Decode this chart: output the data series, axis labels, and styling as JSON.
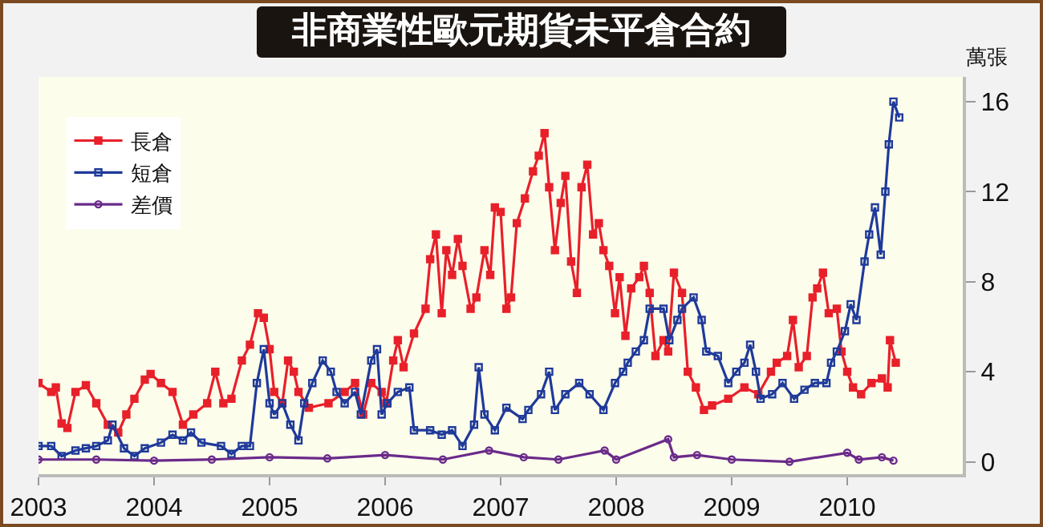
{
  "chart_data": {
    "type": "line",
    "title": "非商業性歐元期貨未平倉合約",
    "ylabel": "萬張",
    "xlim": [
      2003,
      2011
    ],
    "xticks": [
      2003,
      2004,
      2005,
      2006,
      2007,
      2008,
      2009,
      2010
    ],
    "ylim": [
      -0.55,
      17.1
    ],
    "yticks": [
      0,
      4,
      8,
      12,
      16
    ],
    "grid": false,
    "legend": "top left",
    "line_style": "solid",
    "series": [
      {
        "name": "長倉",
        "color": "#e8202a",
        "marker": "square",
        "x": [
          2003.0,
          2003.11,
          2003.15,
          2003.2,
          2003.25,
          2003.32,
          2003.41,
          2003.5,
          2003.6,
          2003.69,
          2003.76,
          2003.83,
          2003.92,
          2003.97,
          2004.06,
          2004.16,
          2004.25,
          2004.34,
          2004.46,
          2004.53,
          2004.6,
          2004.67,
          2004.76,
          2004.83,
          2004.9,
          2004.95,
          2005.0,
          2005.04,
          2005.11,
          2005.16,
          2005.21,
          2005.25,
          2005.34,
          2005.51,
          2005.65,
          2005.74,
          2005.81,
          2005.88,
          2005.97,
          2006.01,
          2006.07,
          2006.11,
          2006.16,
          2006.25,
          2006.35,
          2006.39,
          2006.44,
          2006.49,
          2006.53,
          2006.58,
          2006.63,
          2006.67,
          2006.74,
          2006.79,
          2006.86,
          2006.91,
          2006.95,
          2007.0,
          2007.05,
          2007.09,
          2007.14,
          2007.21,
          2007.28,
          2007.33,
          2007.38,
          2007.42,
          2007.47,
          2007.52,
          2007.56,
          2007.61,
          2007.66,
          2007.7,
          2007.75,
          2007.8,
          2007.85,
          2007.89,
          2007.94,
          2007.99,
          2008.03,
          2008.08,
          2008.13,
          2008.2,
          2008.24,
          2008.29,
          2008.34,
          2008.41,
          2008.45,
          2008.5,
          2008.57,
          2008.62,
          2008.69,
          2008.76,
          2008.83,
          2008.97,
          2009.11,
          2009.23,
          2009.34,
          2009.39,
          2009.48,
          2009.53,
          2009.58,
          2009.65,
          2009.7,
          2009.74,
          2009.79,
          2009.84,
          2009.91,
          2009.95,
          2010.0,
          2010.05,
          2010.12,
          2010.21,
          2010.3,
          2010.35,
          2010.37,
          2010.42
        ],
        "values": [
          3.5,
          3.1,
          3.3,
          1.7,
          1.5,
          3.1,
          3.4,
          2.6,
          1.65,
          1.3,
          2.1,
          2.8,
          3.65,
          3.9,
          3.5,
          3.1,
          1.65,
          2.1,
          2.6,
          4.0,
          2.6,
          2.8,
          4.5,
          5.2,
          6.6,
          6.4,
          5.0,
          3.1,
          2.6,
          4.5,
          4.0,
          3.1,
          2.4,
          2.6,
          3.1,
          3.5,
          2.1,
          3.5,
          3.1,
          2.6,
          4.5,
          5.4,
          4.2,
          5.7,
          6.8,
          9.0,
          10.1,
          6.6,
          9.4,
          8.3,
          9.9,
          8.7,
          6.8,
          7.3,
          9.4,
          8.3,
          11.3,
          11.1,
          6.8,
          7.3,
          10.6,
          11.7,
          12.9,
          13.6,
          14.6,
          12.2,
          9.4,
          11.5,
          12.7,
          8.9,
          7.5,
          12.2,
          13.2,
          10.1,
          10.6,
          9.4,
          8.7,
          6.6,
          8.2,
          5.6,
          7.7,
          8.2,
          8.7,
          7.5,
          4.7,
          5.4,
          4.9,
          8.4,
          7.5,
          4.0,
          3.3,
          2.3,
          2.5,
          2.8,
          3.3,
          3.0,
          4.0,
          4.4,
          4.7,
          6.3,
          4.2,
          4.7,
          7.3,
          7.7,
          8.4,
          6.6,
          6.8,
          4.9,
          4.0,
          3.3,
          3.0,
          3.5,
          3.7,
          3.3,
          5.4,
          4.4
        ]
      },
      {
        "name": "短倉",
        "color": "#1f3a9a",
        "marker": "square-open",
        "x": [
          2003.0,
          2003.11,
          2003.2,
          2003.32,
          2003.41,
          2003.5,
          2003.6,
          2003.64,
          2003.74,
          2003.83,
          2003.92,
          2004.06,
          2004.16,
          2004.25,
          2004.32,
          2004.41,
          2004.58,
          2004.67,
          2004.76,
          2004.83,
          2004.89,
          2004.95,
          2005.0,
          2005.04,
          2005.11,
          2005.18,
          2005.25,
          2005.3,
          2005.37,
          2005.46,
          2005.53,
          2005.58,
          2005.65,
          2005.74,
          2005.79,
          2005.88,
          2005.93,
          2005.97,
          2006.02,
          2006.11,
          2006.21,
          2006.25,
          2006.39,
          2006.49,
          2006.58,
          2006.67,
          2006.77,
          2006.81,
          2006.86,
          2006.95,
          2007.05,
          2007.19,
          2007.24,
          2007.35,
          2007.42,
          2007.47,
          2007.56,
          2007.68,
          2007.77,
          2007.89,
          2007.99,
          2008.06,
          2008.1,
          2008.17,
          2008.24,
          2008.29,
          2008.41,
          2008.46,
          2008.53,
          2008.57,
          2008.67,
          2008.74,
          2008.78,
          2008.88,
          2008.97,
          2009.04,
          2009.11,
          2009.16,
          2009.21,
          2009.25,
          2009.35,
          2009.44,
          2009.54,
          2009.63,
          2009.72,
          2009.82,
          2009.86,
          2009.91,
          2009.98,
          2010.03,
          2010.08,
          2010.15,
          2010.19,
          2010.24,
          2010.29,
          2010.33,
          2010.36,
          2010.4,
          2010.45
        ],
        "values": [
          0.7,
          0.7,
          0.25,
          0.5,
          0.6,
          0.7,
          0.95,
          1.65,
          0.6,
          0.25,
          0.6,
          0.85,
          1.2,
          0.95,
          1.3,
          0.85,
          0.7,
          0.35,
          0.7,
          0.7,
          3.5,
          5.0,
          2.6,
          2.1,
          2.6,
          1.65,
          0.95,
          2.6,
          3.5,
          4.5,
          4.0,
          3.1,
          2.6,
          3.1,
          2.1,
          4.5,
          5.0,
          2.1,
          2.6,
          3.1,
          3.3,
          1.4,
          1.4,
          1.2,
          1.4,
          0.7,
          1.65,
          4.2,
          2.1,
          1.4,
          2.4,
          1.9,
          2.3,
          3.0,
          4.0,
          2.3,
          3.0,
          3.5,
          3.0,
          2.3,
          3.5,
          4.0,
          4.4,
          4.9,
          5.4,
          6.8,
          6.8,
          5.4,
          6.3,
          6.8,
          7.3,
          6.3,
          4.9,
          4.7,
          3.5,
          4.0,
          4.4,
          5.2,
          4.0,
          2.8,
          3.0,
          3.5,
          2.8,
          3.2,
          3.5,
          3.5,
          4.4,
          4.9,
          5.8,
          7.0,
          6.3,
          8.9,
          10.1,
          11.3,
          9.2,
          12.0,
          14.1,
          16.0,
          15.3
        ]
      },
      {
        "name": "差價",
        "color": "#6a2a8a",
        "marker": "circle-open",
        "x": [
          2003.0,
          2003.5,
          2004.0,
          2004.5,
          2005.0,
          2005.5,
          2006.0,
          2006.5,
          2006.9,
          2007.2,
          2007.5,
          2007.9,
          2008.0,
          2008.45,
          2008.5,
          2008.7,
          2009.0,
          2009.5,
          2010.0,
          2010.1,
          2010.3,
          2010.4
        ],
        "values": [
          0.1,
          0.1,
          0.05,
          0.1,
          0.2,
          0.15,
          0.3,
          0.1,
          0.5,
          0.2,
          0.1,
          0.5,
          0.1,
          1.0,
          0.2,
          0.3,
          0.1,
          0.0,
          0.4,
          0.1,
          0.2,
          0.05
        ]
      }
    ]
  }
}
